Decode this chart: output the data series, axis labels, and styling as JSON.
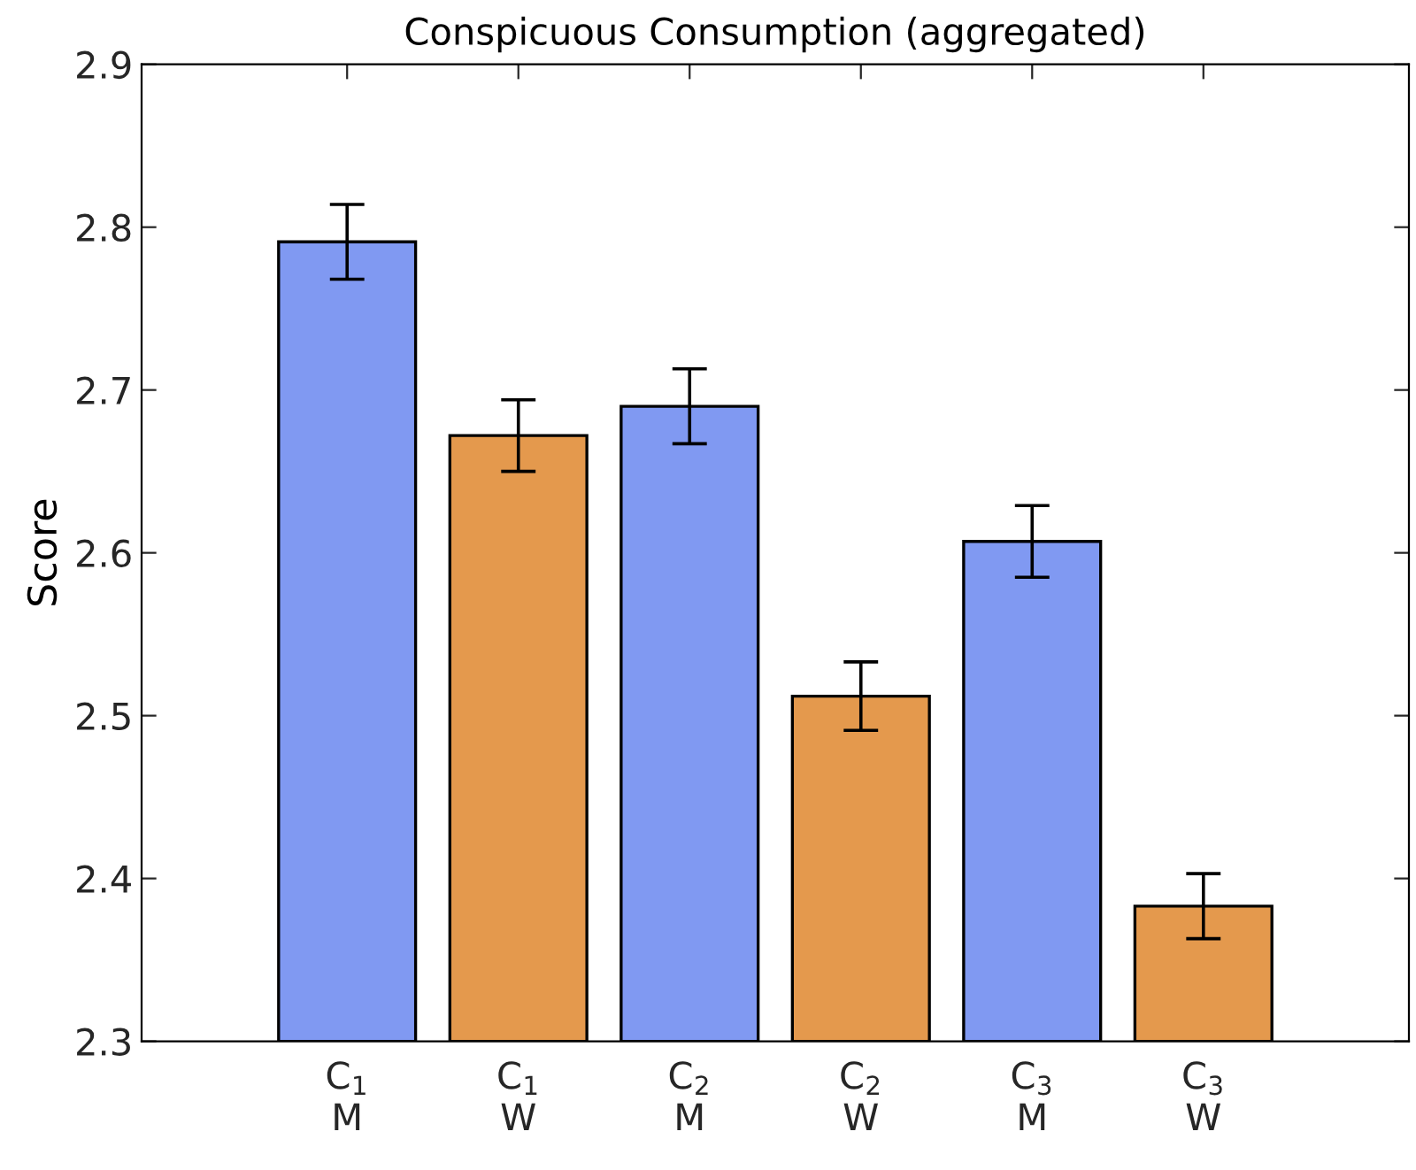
{
  "chart_data": {
    "type": "bar",
    "title": "Conspicuous Consumption (aggregated)",
    "ylabel": "Score",
    "categories": [
      "C$_{1}$\nM",
      "C$_{1}$\nW",
      "C$_{2}$\nM",
      "C$_{2}$\nW",
      "C$_{3}$\nM",
      "C$_{3}$\nW"
    ],
    "values": [
      2.791,
      2.672,
      2.69,
      2.512,
      2.607,
      2.383
    ],
    "errors": [
      0.023,
      0.022,
      0.023,
      0.021,
      0.022,
      0.02
    ],
    "colors": [
      "#8099f2",
      "#e4994d",
      "#8099f2",
      "#e4994d",
      "#8099f2",
      "#e4994d"
    ],
    "ylim": [
      2.3,
      2.9
    ],
    "yticks": [
      2.3,
      2.4,
      2.5,
      2.6,
      2.7,
      2.8,
      2.9
    ],
    "grid": false,
    "legend": false
  }
}
